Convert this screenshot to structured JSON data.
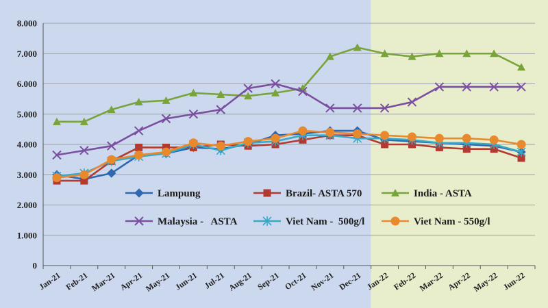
{
  "chart_data": {
    "type": "line",
    "title": "",
    "xlabel": "",
    "ylabel": "",
    "ylim": [
      0,
      8000
    ],
    "yticks": [
      0,
      1000,
      2000,
      3000,
      4000,
      5000,
      6000,
      7000,
      8000
    ],
    "ytick_labels": [
      "0",
      "1.000",
      "2.000",
      "3.000",
      "4.000",
      "5.000",
      "6.000",
      "7.000",
      "8.000"
    ],
    "categories": [
      "Jan-21",
      "Feb-21",
      "Mar-21",
      "Apr-21",
      "May-21",
      "Jun-21",
      "Jul-21",
      "Aug-21",
      "Sep-21",
      "Oct-21",
      "Nov-21",
      "Dec-21",
      "Jan-22",
      "Feb-22",
      "Mar-22",
      "Apr-22",
      "May-22",
      "Jun-22"
    ],
    "grid": true,
    "legend_position": "center-bottom",
    "shaded_regions": [
      {
        "from": "Jan-21",
        "to": "Dec-21",
        "color": "#ccd8ee"
      },
      {
        "from": "Jan-22",
        "to": "Jun-22",
        "color": "#e8eecb"
      }
    ],
    "series": [
      {
        "name": "Lampung",
        "color": "#2f67b1",
        "marker": "diamond",
        "values": [
          3000,
          2850,
          3050,
          3650,
          3700,
          3900,
          3850,
          4000,
          4300,
          4350,
          4450,
          4450,
          4150,
          4100,
          4050,
          4000,
          3950,
          3750
        ]
      },
      {
        "name": "Brazil- ASTA 570",
        "color": "#b33a31",
        "marker": "square",
        "values": [
          2800,
          2800,
          3450,
          3900,
          3900,
          3900,
          4000,
          3950,
          4000,
          4150,
          4300,
          4300,
          4000,
          4000,
          3900,
          3850,
          3850,
          3550
        ]
      },
      {
        "name": "India - ASTA",
        "color": "#79a33b",
        "marker": "triangle",
        "values": [
          4750,
          4750,
          5150,
          5400,
          5450,
          5700,
          5650,
          5600,
          5700,
          5850,
          6900,
          7200,
          7000,
          6900,
          7000,
          7000,
          7000,
          6550
        ]
      },
      {
        "name": "Malaysia -   ASTA",
        "color": "#7a4fa0",
        "marker": "x",
        "values": [
          3650,
          3800,
          3950,
          4450,
          4850,
          5000,
          5150,
          5850,
          6000,
          5750,
          5200,
          5200,
          5200,
          5400,
          5900,
          5900,
          5900,
          5900
        ]
      },
      {
        "name": "Viet Nam -  500g/l",
        "color": "#3aa9c5",
        "marker": "asterisk",
        "values": [
          2950,
          3050,
          3450,
          3600,
          3700,
          4000,
          3800,
          4050,
          4100,
          4300,
          4300,
          4200,
          4200,
          4150,
          4050,
          4050,
          4000,
          3750
        ]
      },
      {
        "name": "Viet Nam - 550g/l",
        "color": "#e8892e",
        "marker": "circle",
        "values": [
          2900,
          3000,
          3500,
          3650,
          3750,
          4050,
          3950,
          4100,
          4200,
          4450,
          4400,
          4350,
          4300,
          4250,
          4200,
          4200,
          4150,
          4000
        ]
      }
    ]
  }
}
